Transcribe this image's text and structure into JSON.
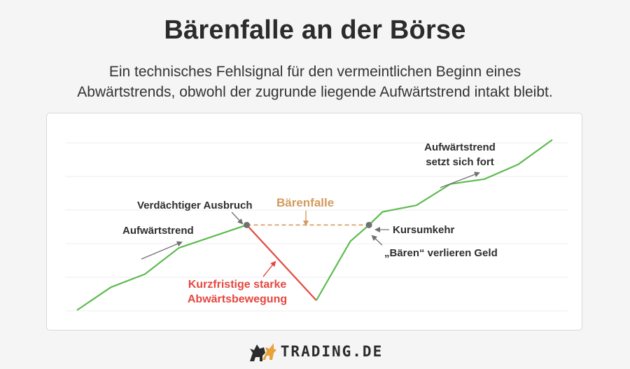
{
  "title": "Bärenfalle an der Börse",
  "subtitle": {
    "line1": "Ein technisches Fehlsignal für den vermeintlichen Beginn eines",
    "line2": "Abwärtstrends, obwohl der zugrunde liegende Aufwärtstrend intakt bleibt."
  },
  "colors": {
    "uptrend": "#5dbb4f",
    "downtrend": "#e5473f",
    "trap": "#d39a5d",
    "marker": "#707070",
    "text": "#2e2e2e"
  },
  "annotations": {
    "uptrend_start": "Aufwärtstrend",
    "suspicious_breakout": "Verdächtiger Ausbruch",
    "bear_trap": "Bärenfalle",
    "reversal": "Kursumkehr",
    "bears_lose": "„Bären“ verlieren Geld",
    "continue_line1": "Aufwärtstrend",
    "continue_line2": "setzt sich fort",
    "sharp_drop_line1": "Kurzfristige starke",
    "sharp_drop_line2": "Abwärtsbewegung"
  },
  "chart_data": {
    "type": "line",
    "grid": true,
    "series": [
      {
        "segment": "uptrend",
        "values": [
          [
            0,
            0
          ],
          [
            1,
            1.4
          ],
          [
            2,
            2.2
          ],
          [
            3,
            3.8
          ],
          [
            4,
            4.5
          ],
          [
            5,
            5.2
          ]
        ]
      },
      {
        "segment": "sharp_drop",
        "values": [
          [
            5,
            5.2
          ],
          [
            7.05,
            0.6
          ]
        ]
      },
      {
        "segment": "recovery_uptrend",
        "values": [
          [
            7.05,
            0.6
          ],
          [
            8.05,
            4.2
          ],
          [
            8.6,
            5.2
          ],
          [
            9,
            6.0
          ],
          [
            10,
            6.4
          ],
          [
            11,
            7.7
          ],
          [
            12,
            8.0
          ],
          [
            13,
            8.9
          ],
          [
            14,
            10.4
          ]
        ]
      },
      {
        "segment": "bear_trap_level",
        "values": [
          [
            5,
            5.2
          ],
          [
            8.6,
            5.2
          ]
        ]
      }
    ],
    "markers": [
      {
        "name": "suspicious_breakout",
        "x": 5,
        "y": 5.2
      },
      {
        "name": "reversal",
        "x": 8.6,
        "y": 5.2
      }
    ]
  },
  "logo": {
    "icon": "bull-bear-icon",
    "text": "TRADING.DE"
  }
}
